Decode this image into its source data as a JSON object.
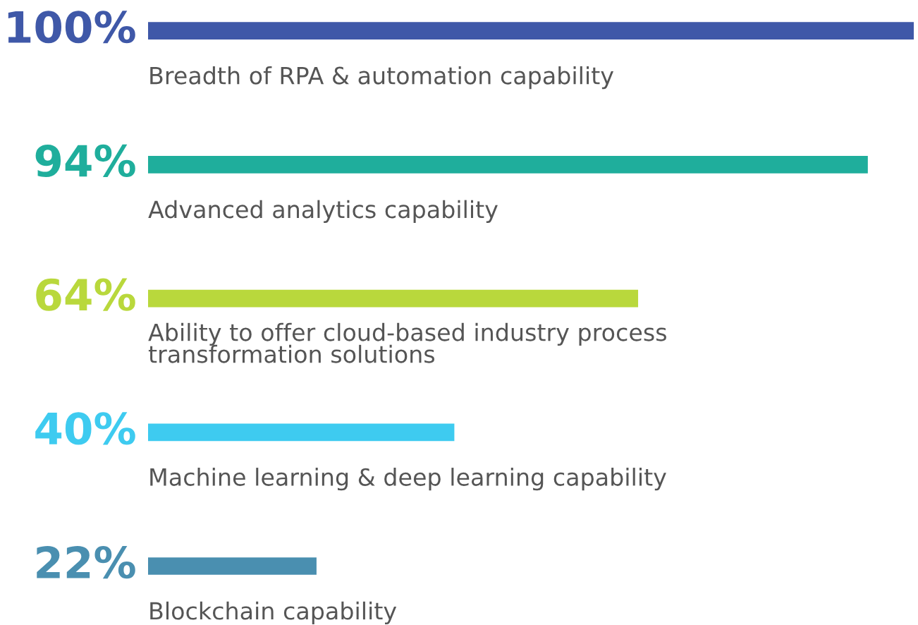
{
  "chart_data": {
    "type": "bar",
    "orientation": "horizontal",
    "categories": [
      "Breadth of RPA & automation capability",
      "Advanced analytics capability",
      "Ability to offer cloud-based industry process\ntransformation solutions",
      "Machine learning & deep learning capability",
      "Blockchain capability"
    ],
    "values": [
      100,
      94,
      64,
      40,
      22
    ],
    "value_labels": [
      "100%",
      "94%",
      "64%",
      "40%",
      "22%"
    ],
    "colors": [
      "#3f58a8",
      "#1fae9c",
      "#b9d83c",
      "#3ecbf0",
      "#4a8fb0"
    ]
  }
}
